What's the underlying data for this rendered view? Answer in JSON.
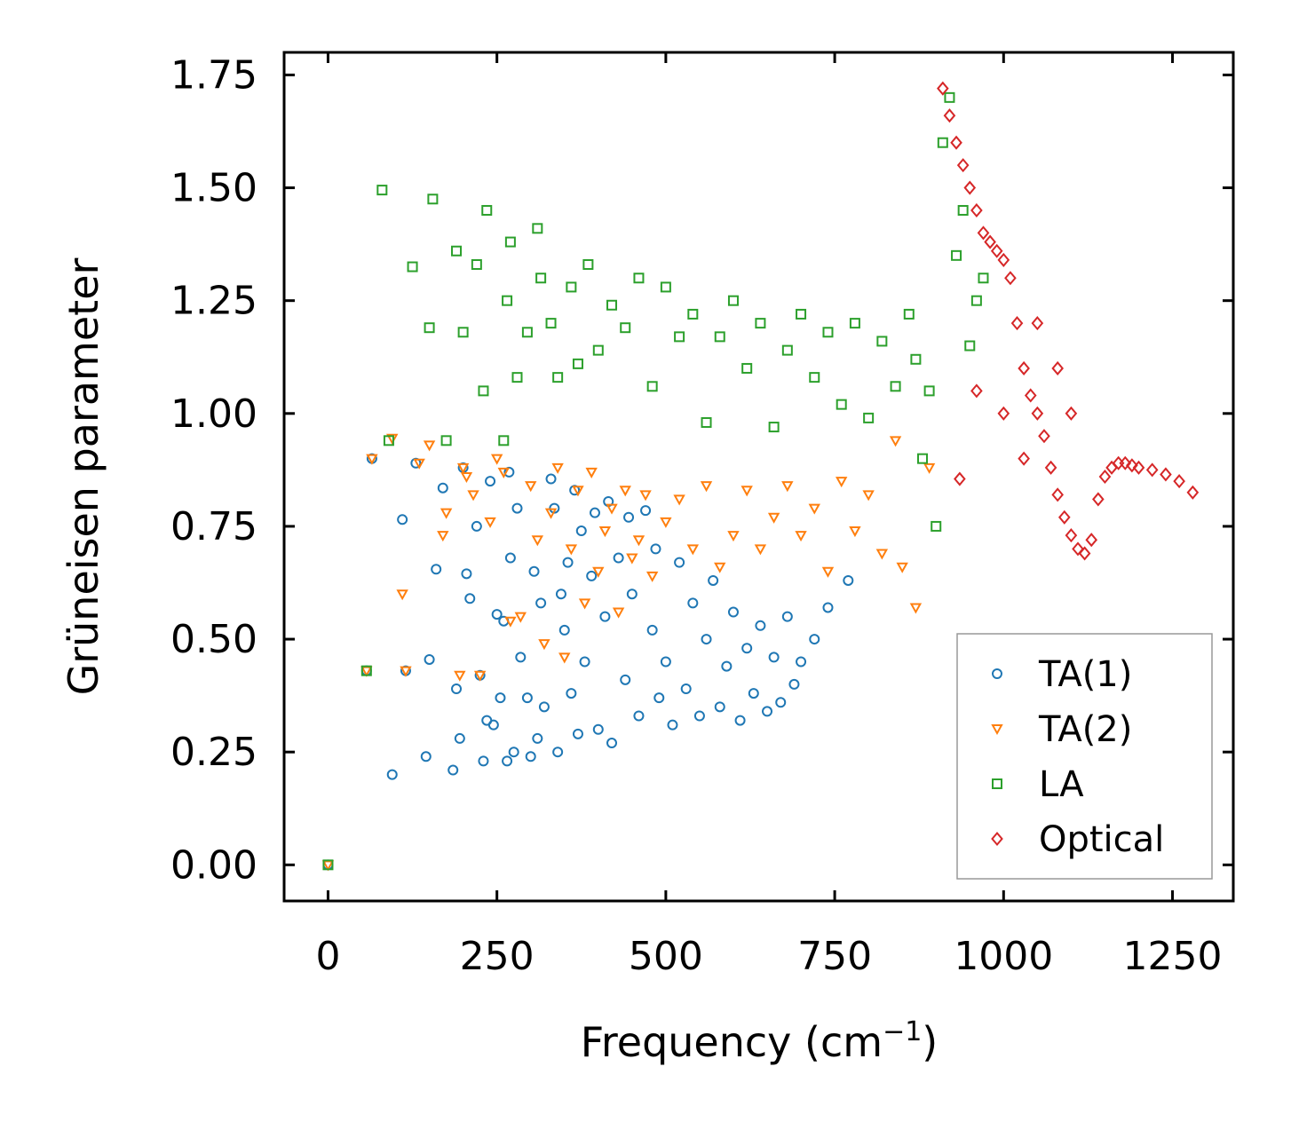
{
  "chart_data": {
    "type": "scatter",
    "title": "",
    "xlabel": "Frequency (cm",
    "xlabel_sup": "−1",
    "xlabel_end": ")",
    "ylabel": "Grüneisen parameter",
    "xlim": [
      -65,
      1340
    ],
    "ylim": [
      -0.08,
      1.8
    ],
    "xticks": [
      0,
      250,
      500,
      750,
      1000,
      1250
    ],
    "xtick_labels": [
      "0",
      "250",
      "500",
      "750",
      "1000",
      "1250"
    ],
    "yticks": [
      0.0,
      0.25,
      0.5,
      0.75,
      1.0,
      1.25,
      1.5,
      1.75
    ],
    "ytick_labels": [
      "0.00",
      "0.25",
      "0.50",
      "0.75",
      "1.00",
      "1.25",
      "1.50",
      "1.75"
    ],
    "legend_position": "lower-right",
    "series": [
      {
        "name": "TA(1)",
        "marker": "circle",
        "color": "#1f77b4",
        "points": [
          [
            0,
            0
          ],
          [
            57,
            0.43
          ],
          [
            65,
            0.9
          ],
          [
            95,
            0.2
          ],
          [
            110,
            0.765
          ],
          [
            115,
            0.43
          ],
          [
            130,
            0.89
          ],
          [
            145,
            0.24
          ],
          [
            150,
            0.455
          ],
          [
            160,
            0.655
          ],
          [
            170,
            0.835
          ],
          [
            185,
            0.21
          ],
          [
            190,
            0.39
          ],
          [
            195,
            0.28
          ],
          [
            200,
            0.88
          ],
          [
            205,
            0.645
          ],
          [
            210,
            0.59
          ],
          [
            220,
            0.75
          ],
          [
            225,
            0.42
          ],
          [
            230,
            0.23
          ],
          [
            235,
            0.32
          ],
          [
            240,
            0.85
          ],
          [
            245,
            0.31
          ],
          [
            250,
            0.555
          ],
          [
            255,
            0.37
          ],
          [
            260,
            0.54
          ],
          [
            265,
            0.23
          ],
          [
            268,
            0.87
          ],
          [
            270,
            0.68
          ],
          [
            275,
            0.25
          ],
          [
            280,
            0.79
          ],
          [
            285,
            0.46
          ],
          [
            295,
            0.37
          ],
          [
            300,
            0.24
          ],
          [
            305,
            0.65
          ],
          [
            310,
            0.28
          ],
          [
            315,
            0.58
          ],
          [
            320,
            0.35
          ],
          [
            330,
            0.855
          ],
          [
            335,
            0.79
          ],
          [
            340,
            0.25
          ],
          [
            345,
            0.6
          ],
          [
            350,
            0.52
          ],
          [
            355,
            0.67
          ],
          [
            360,
            0.38
          ],
          [
            365,
            0.83
          ],
          [
            370,
            0.29
          ],
          [
            375,
            0.74
          ],
          [
            380,
            0.45
          ],
          [
            390,
            0.64
          ],
          [
            395,
            0.78
          ],
          [
            400,
            0.3
          ],
          [
            410,
            0.55
          ],
          [
            415,
            0.805
          ],
          [
            420,
            0.27
          ],
          [
            430,
            0.68
          ],
          [
            440,
            0.41
          ],
          [
            445,
            0.77
          ],
          [
            450,
            0.6
          ],
          [
            460,
            0.33
          ],
          [
            470,
            0.785
          ],
          [
            480,
            0.52
          ],
          [
            485,
            0.7
          ],
          [
            490,
            0.37
          ],
          [
            500,
            0.45
          ],
          [
            510,
            0.31
          ],
          [
            520,
            0.67
          ],
          [
            530,
            0.39
          ],
          [
            540,
            0.58
          ],
          [
            550,
            0.33
          ],
          [
            560,
            0.5
          ],
          [
            570,
            0.63
          ],
          [
            580,
            0.35
          ],
          [
            590,
            0.44
          ],
          [
            600,
            0.56
          ],
          [
            610,
            0.32
          ],
          [
            620,
            0.48
          ],
          [
            630,
            0.38
          ],
          [
            640,
            0.53
          ],
          [
            650,
            0.34
          ],
          [
            660,
            0.46
          ],
          [
            670,
            0.36
          ],
          [
            680,
            0.55
          ],
          [
            690,
            0.4
          ],
          [
            700,
            0.45
          ],
          [
            720,
            0.5
          ],
          [
            740,
            0.57
          ],
          [
            770,
            0.63
          ]
        ]
      },
      {
        "name": "TA(2)",
        "marker": "triangle-down",
        "color": "#ff7f0e",
        "points": [
          [
            0,
            0
          ],
          [
            57,
            0.43
          ],
          [
            65,
            0.9
          ],
          [
            95,
            0.945
          ],
          [
            110,
            0.6
          ],
          [
            115,
            0.43
          ],
          [
            135,
            0.89
          ],
          [
            150,
            0.93
          ],
          [
            170,
            0.73
          ],
          [
            175,
            0.78
          ],
          [
            195,
            0.42
          ],
          [
            200,
            0.88
          ],
          [
            205,
            0.86
          ],
          [
            215,
            0.82
          ],
          [
            225,
            0.42
          ],
          [
            240,
            0.76
          ],
          [
            250,
            0.9
          ],
          [
            260,
            0.87
          ],
          [
            270,
            0.54
          ],
          [
            285,
            0.55
          ],
          [
            300,
            0.84
          ],
          [
            310,
            0.72
          ],
          [
            320,
            0.49
          ],
          [
            330,
            0.78
          ],
          [
            340,
            0.88
          ],
          [
            350,
            0.46
          ],
          [
            360,
            0.7
          ],
          [
            370,
            0.83
          ],
          [
            380,
            0.58
          ],
          [
            390,
            0.87
          ],
          [
            400,
            0.65
          ],
          [
            410,
            0.74
          ],
          [
            420,
            0.79
          ],
          [
            430,
            0.56
          ],
          [
            440,
            0.83
          ],
          [
            450,
            0.68
          ],
          [
            460,
            0.72
          ],
          [
            470,
            0.82
          ],
          [
            480,
            0.64
          ],
          [
            500,
            0.76
          ],
          [
            520,
            0.81
          ],
          [
            540,
            0.7
          ],
          [
            560,
            0.84
          ],
          [
            580,
            0.66
          ],
          [
            600,
            0.73
          ],
          [
            620,
            0.83
          ],
          [
            640,
            0.7
          ],
          [
            660,
            0.77
          ],
          [
            680,
            0.84
          ],
          [
            700,
            0.73
          ],
          [
            720,
            0.79
          ],
          [
            740,
            0.65
          ],
          [
            760,
            0.85
          ],
          [
            780,
            0.74
          ],
          [
            800,
            0.82
          ],
          [
            820,
            0.69
          ],
          [
            840,
            0.94
          ],
          [
            850,
            0.66
          ],
          [
            870,
            0.57
          ],
          [
            890,
            0.88
          ]
        ]
      },
      {
        "name": "LA",
        "marker": "square",
        "color": "#2ca02c",
        "points": [
          [
            0,
            0
          ],
          [
            57,
            0.43
          ],
          [
            80,
            1.495
          ],
          [
            90,
            0.94
          ],
          [
            125,
            1.325
          ],
          [
            150,
            1.19
          ],
          [
            155,
            1.475
          ],
          [
            175,
            0.94
          ],
          [
            190,
            1.36
          ],
          [
            200,
            1.18
          ],
          [
            220,
            1.33
          ],
          [
            230,
            1.05
          ],
          [
            235,
            1.45
          ],
          [
            260,
            0.94
          ],
          [
            265,
            1.25
          ],
          [
            270,
            1.38
          ],
          [
            280,
            1.08
          ],
          [
            295,
            1.18
          ],
          [
            310,
            1.41
          ],
          [
            315,
            1.3
          ],
          [
            330,
            1.2
          ],
          [
            340,
            1.08
          ],
          [
            360,
            1.28
          ],
          [
            370,
            1.11
          ],
          [
            385,
            1.33
          ],
          [
            400,
            1.14
          ],
          [
            420,
            1.24
          ],
          [
            440,
            1.19
          ],
          [
            460,
            1.3
          ],
          [
            480,
            1.06
          ],
          [
            500,
            1.28
          ],
          [
            520,
            1.17
          ],
          [
            540,
            1.22
          ],
          [
            560,
            0.98
          ],
          [
            580,
            1.17
          ],
          [
            600,
            1.25
          ],
          [
            620,
            1.1
          ],
          [
            640,
            1.2
          ],
          [
            660,
            0.97
          ],
          [
            680,
            1.14
          ],
          [
            700,
            1.22
          ],
          [
            720,
            1.08
          ],
          [
            740,
            1.18
          ],
          [
            760,
            1.02
          ],
          [
            780,
            1.2
          ],
          [
            800,
            0.99
          ],
          [
            820,
            1.16
          ],
          [
            840,
            1.06
          ],
          [
            860,
            1.22
          ],
          [
            870,
            1.12
          ],
          [
            880,
            0.9
          ],
          [
            890,
            1.05
          ],
          [
            900,
            0.75
          ],
          [
            910,
            1.6
          ],
          [
            920,
            1.7
          ],
          [
            930,
            1.35
          ],
          [
            940,
            1.45
          ],
          [
            950,
            1.15
          ],
          [
            960,
            1.25
          ],
          [
            970,
            1.3
          ]
        ]
      },
      {
        "name": "Optical",
        "marker": "diamond",
        "color": "#d62728",
        "points": [
          [
            910,
            1.72
          ],
          [
            920,
            1.66
          ],
          [
            930,
            1.6
          ],
          [
            940,
            1.55
          ],
          [
            950,
            1.5
          ],
          [
            960,
            1.45
          ],
          [
            970,
            1.4
          ],
          [
            980,
            1.38
          ],
          [
            990,
            1.36
          ],
          [
            1000,
            1.34
          ],
          [
            1010,
            1.3
          ],
          [
            1020,
            1.2
          ],
          [
            1030,
            1.1
          ],
          [
            1040,
            1.04
          ],
          [
            1050,
            1.0
          ],
          [
            1060,
            0.95
          ],
          [
            1070,
            0.88
          ],
          [
            1080,
            0.82
          ],
          [
            1090,
            0.77
          ],
          [
            1100,
            0.73
          ],
          [
            1110,
            0.7
          ],
          [
            1120,
            0.69
          ],
          [
            1130,
            0.72
          ],
          [
            1140,
            0.81
          ],
          [
            1150,
            0.86
          ],
          [
            1160,
            0.88
          ],
          [
            1170,
            0.89
          ],
          [
            1180,
            0.89
          ],
          [
            1190,
            0.885
          ],
          [
            1200,
            0.88
          ],
          [
            1220,
            0.875
          ],
          [
            1240,
            0.865
          ],
          [
            1260,
            0.85
          ],
          [
            1280,
            0.825
          ],
          [
            935,
            0.855
          ],
          [
            960,
            1.05
          ],
          [
            1000,
            1.0
          ],
          [
            1030,
            0.9
          ],
          [
            1050,
            1.2
          ],
          [
            1080,
            1.1
          ],
          [
            1100,
            1.0
          ]
        ]
      }
    ]
  }
}
